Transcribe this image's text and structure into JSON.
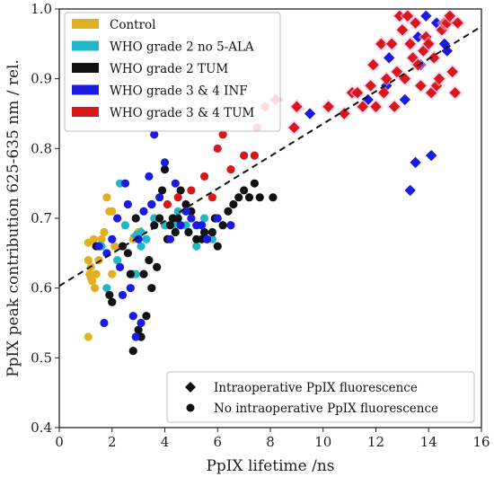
{
  "chart_data": {
    "type": "scatter",
    "xlabel": "PpIX lifetime /ns",
    "ylabel": "PpIX peak contribution 625-635 nm / rel.",
    "xlim": [
      0,
      16
    ],
    "ylim": [
      0.4,
      1.0
    ],
    "xticks": [
      "0",
      "2",
      "4",
      "6",
      "8",
      "10",
      "12",
      "14",
      "16"
    ],
    "yticks": [
      "0.4",
      "0.5",
      "0.6",
      "0.7",
      "0.8",
      "0.9",
      "1.0"
    ],
    "xtick_values": [
      0,
      2,
      4,
      6,
      8,
      10,
      12,
      14,
      16
    ],
    "ytick_values": [
      0.4,
      0.5,
      0.6,
      0.7,
      0.8,
      0.9,
      1.0
    ],
    "legend_placement": "top-left",
    "trend_line": {
      "style": "dashed",
      "color": "#111111",
      "x": [
        0,
        16
      ],
      "y": [
        0.603,
        0.975
      ]
    },
    "series": [
      {
        "name": "Control",
        "color": "#e0b020",
        "circles": [
          [
            1.1,
            0.53
          ],
          [
            1.15,
            0.62
          ],
          [
            1.2,
            0.63
          ],
          [
            1.25,
            0.61
          ],
          [
            1.1,
            0.64
          ],
          [
            1.3,
            0.67
          ],
          [
            1.6,
            0.67
          ],
          [
            1.8,
            0.73
          ],
          [
            1.9,
            0.71
          ],
          [
            2.0,
            0.71
          ],
          [
            2.1,
            0.66
          ],
          [
            1.2,
            0.615
          ],
          [
            1.35,
            0.6
          ],
          [
            1.5,
            0.64
          ],
          [
            1.7,
            0.68
          ],
          [
            2.8,
            0.67
          ],
          [
            3.0,
            0.68
          ],
          [
            2.0,
            0.62
          ],
          [
            1.1,
            0.665
          ],
          [
            1.4,
            0.62
          ]
        ],
        "diamonds": []
      },
      {
        "name": "WHO grade 2 no 5-ALA",
        "color": "#20b8c8",
        "circles": [
          [
            1.6,
            0.66
          ],
          [
            1.8,
            0.6
          ],
          [
            2.0,
            0.58
          ],
          [
            2.3,
            0.75
          ],
          [
            2.8,
            0.62
          ],
          [
            2.9,
            0.62
          ],
          [
            3.3,
            0.67
          ],
          [
            3.6,
            0.7
          ],
          [
            4.0,
            0.69
          ],
          [
            4.4,
            0.69
          ],
          [
            4.5,
            0.71
          ],
          [
            4.8,
            0.69
          ],
          [
            5.2,
            0.66
          ],
          [
            5.5,
            0.7
          ],
          [
            5.8,
            0.67
          ],
          [
            2.5,
            0.69
          ],
          [
            3.1,
            0.66
          ],
          [
            2.2,
            0.64
          ]
        ],
        "diamonds": [
          [
            2.9,
            0.675
          ],
          [
            3.1,
            0.68
          ]
        ]
      },
      {
        "name": "WHO grade 2 TUM",
        "color": "#111111",
        "circles": [
          [
            1.4,
            0.66
          ],
          [
            1.9,
            0.59
          ],
          [
            2.0,
            0.58
          ],
          [
            2.4,
            0.66
          ],
          [
            2.6,
            0.65
          ],
          [
            2.7,
            0.62
          ],
          [
            2.8,
            0.51
          ],
          [
            3.0,
            0.54
          ],
          [
            3.1,
            0.53
          ],
          [
            3.2,
            0.62
          ],
          [
            3.3,
            0.56
          ],
          [
            3.4,
            0.64
          ],
          [
            3.5,
            0.6
          ],
          [
            3.6,
            0.69
          ],
          [
            3.8,
            0.7
          ],
          [
            3.9,
            0.74
          ],
          [
            4.0,
            0.77
          ],
          [
            4.1,
            0.67
          ],
          [
            4.2,
            0.69
          ],
          [
            4.3,
            0.7
          ],
          [
            4.4,
            0.68
          ],
          [
            4.5,
            0.7
          ],
          [
            4.6,
            0.74
          ],
          [
            4.8,
            0.72
          ],
          [
            5.0,
            0.71
          ],
          [
            5.2,
            0.67
          ],
          [
            5.4,
            0.67
          ],
          [
            5.5,
            0.68
          ],
          [
            5.6,
            0.67
          ],
          [
            5.8,
            0.68
          ],
          [
            6.0,
            0.66
          ],
          [
            6.2,
            0.69
          ],
          [
            6.4,
            0.71
          ],
          [
            6.6,
            0.72
          ],
          [
            6.8,
            0.73
          ],
          [
            7.0,
            0.74
          ],
          [
            7.2,
            0.73
          ],
          [
            7.4,
            0.75
          ],
          [
            7.6,
            0.73
          ],
          [
            8.1,
            0.73
          ],
          [
            3.7,
            0.63
          ],
          [
            4.9,
            0.68
          ],
          [
            5.9,
            0.7
          ],
          [
            2.9,
            0.7
          ],
          [
            3.5,
            0.72
          ]
        ],
        "diamonds": []
      },
      {
        "name": "WHO grade 3 & 4 INF",
        "color": "#1a1ae0",
        "circles": [
          [
            1.5,
            0.66
          ],
          [
            1.7,
            0.55
          ],
          [
            1.8,
            0.65
          ],
          [
            2.0,
            0.67
          ],
          [
            2.3,
            0.63
          ],
          [
            2.4,
            0.59
          ],
          [
            2.5,
            0.75
          ],
          [
            2.6,
            0.72
          ],
          [
            2.7,
            0.6
          ],
          [
            2.8,
            0.56
          ],
          [
            2.9,
            0.53
          ],
          [
            3.0,
            0.67
          ],
          [
            3.2,
            0.71
          ],
          [
            3.4,
            0.76
          ],
          [
            3.5,
            0.72
          ],
          [
            3.6,
            0.82
          ],
          [
            3.8,
            0.73
          ],
          [
            4.0,
            0.78
          ],
          [
            4.2,
            0.67
          ],
          [
            4.4,
            0.75
          ],
          [
            4.6,
            0.69
          ],
          [
            4.8,
            0.71
          ],
          [
            5.0,
            0.7
          ],
          [
            5.2,
            0.69
          ],
          [
            5.4,
            0.69
          ],
          [
            5.6,
            0.67
          ],
          [
            6.0,
            0.7
          ],
          [
            6.5,
            0.69
          ],
          [
            3.1,
            0.55
          ],
          [
            2.2,
            0.7
          ]
        ],
        "diamonds": [
          [
            9.5,
            0.85
          ],
          [
            11.7,
            0.87
          ],
          [
            12.4,
            0.89
          ],
          [
            13.1,
            0.87
          ],
          [
            13.6,
            0.96
          ],
          [
            13.9,
            0.99
          ],
          [
            14.6,
            0.95
          ],
          [
            14.7,
            0.94
          ],
          [
            13.3,
            0.74
          ],
          [
            13.5,
            0.78
          ],
          [
            14.1,
            0.79
          ],
          [
            12.5,
            0.93
          ],
          [
            13.7,
            0.92
          ],
          [
            14.3,
            0.98
          ]
        ]
      },
      {
        "name": "WHO grade 3 & 4 TUM",
        "color": "#d81818",
        "circles": [
          [
            4.1,
            0.72
          ],
          [
            4.5,
            0.73
          ],
          [
            5.0,
            0.74
          ],
          [
            5.5,
            0.76
          ],
          [
            5.8,
            0.73
          ],
          [
            6.0,
            0.8
          ],
          [
            6.5,
            0.77
          ],
          [
            7.0,
            0.79
          ],
          [
            7.4,
            0.79
          ],
          [
            7.5,
            0.83
          ],
          [
            6.2,
            0.82
          ],
          [
            7.8,
            0.86
          ]
        ],
        "diamonds": [
          [
            8.2,
            0.87
          ],
          [
            8.9,
            0.83
          ],
          [
            9.0,
            0.86
          ],
          [
            10.2,
            0.86
          ],
          [
            10.8,
            0.85
          ],
          [
            11.1,
            0.88
          ],
          [
            11.3,
            0.88
          ],
          [
            11.5,
            0.86
          ],
          [
            11.8,
            0.89
          ],
          [
            12.0,
            0.86
          ],
          [
            12.2,
            0.95
          ],
          [
            12.4,
            0.9
          ],
          [
            12.6,
            0.95
          ],
          [
            12.8,
            0.91
          ],
          [
            12.9,
            0.99
          ],
          [
            13.0,
            0.97
          ],
          [
            13.1,
            0.9
          ],
          [
            13.2,
            0.99
          ],
          [
            13.3,
            0.95
          ],
          [
            13.4,
            0.93
          ],
          [
            13.5,
            0.98
          ],
          [
            13.6,
            0.92
          ],
          [
            13.7,
            0.89
          ],
          [
            13.8,
            0.94
          ],
          [
            13.9,
            0.96
          ],
          [
            14.0,
            0.95
          ],
          [
            14.1,
            0.88
          ],
          [
            14.2,
            0.93
          ],
          [
            14.3,
            0.89
          ],
          [
            14.4,
            0.9
          ],
          [
            14.5,
            0.97
          ],
          [
            14.6,
            0.98
          ],
          [
            14.7,
            0.98
          ],
          [
            14.8,
            0.99
          ],
          [
            15.0,
            0.88
          ],
          [
            15.1,
            0.98
          ],
          [
            12.7,
            0.86
          ],
          [
            11.9,
            0.92
          ],
          [
            12.3,
            0.88
          ],
          [
            14.9,
            0.91
          ]
        ]
      }
    ],
    "marker_legend": [
      {
        "marker": "diamond",
        "label": "Intraoperative PpIX fluorescence"
      },
      {
        "marker": "circle",
        "label": "No intraoperative PpIX fluorescence"
      }
    ]
  }
}
